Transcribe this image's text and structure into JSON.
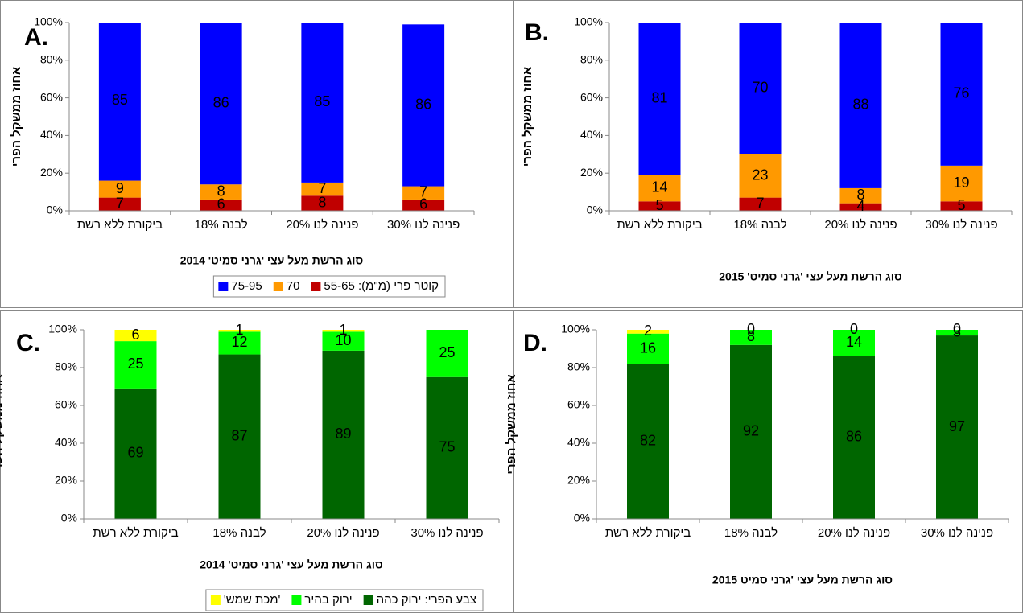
{
  "chart_data": [
    {
      "type": "bar",
      "panel": "A.",
      "ylabel": "אחוז ממשקל הפרי",
      "xlabel": "סוג הרשת מעל עצי 'גרני סמיט' 2014",
      "categories": [
        "ביקורת ללא רשת",
        "לבנה 18%",
        "פנינה לנו 20%",
        "פנינה לנו 30%"
      ],
      "series": [
        {
          "name": "קוטר פרי (מ\"מ): 55-65",
          "color": "#c00000",
          "values": [
            7,
            6,
            8,
            6
          ]
        },
        {
          "name": "70",
          "color": "#ff9900",
          "values": [
            9,
            8,
            7,
            7
          ]
        },
        {
          "name": "75-95",
          "color": "#0000ff",
          "values": [
            85,
            86,
            85,
            86
          ]
        }
      ],
      "ylim": [
        0,
        100
      ],
      "yticks": [
        {
          "value": 0,
          "label": "0%"
        },
        {
          "value": 20,
          "label": "20%"
        },
        {
          "value": 40,
          "label": "40%"
        },
        {
          "value": 60,
          "label": "60%"
        },
        {
          "value": 80,
          "label": "80%"
        },
        {
          "value": 100,
          "label": "100%"
        }
      ],
      "legend": "bottom"
    },
    {
      "type": "bar",
      "panel": "B.",
      "ylabel": "אחוז ממשקל הפרי",
      "xlabel": "סוג הרשת מעל עצי 'גרני סמיט' 2015",
      "categories": [
        "ביקורת ללא רשת",
        "לבנה 18%",
        "פנינה לנו 20%",
        "פנינה לנו 30%"
      ],
      "series": [
        {
          "color": "#c00000",
          "values": [
            5,
            7,
            4,
            5
          ]
        },
        {
          "color": "#ff9900",
          "values": [
            14,
            23,
            8,
            19
          ]
        },
        {
          "color": "#0000ff",
          "values": [
            81,
            70,
            88,
            76
          ]
        }
      ],
      "ylim": [
        0,
        100
      ],
      "yticks": [
        {
          "value": 0,
          "label": "0%"
        },
        {
          "value": 20,
          "label": "20%"
        },
        {
          "value": 40,
          "label": "40%"
        },
        {
          "value": 60,
          "label": "60%"
        },
        {
          "value": 80,
          "label": "80%"
        },
        {
          "value": 100,
          "label": "100%"
        }
      ]
    },
    {
      "type": "bar",
      "panel": "C.",
      "ylabel": "אחוז ממשקל הפרי",
      "xlabel": "סוג הרשת מעל עצי 'גרני סמיט'  2014",
      "categories": [
        "ביקורת ללא רשת",
        "לבנה 18%",
        "פנינה לנו 20%",
        "פנינה לנו 30%"
      ],
      "series": [
        {
          "name": "צבע הפרי: ירוק כהה",
          "color": "#006600",
          "values": [
            69,
            87,
            89,
            75
          ]
        },
        {
          "name": "ירוק בהיר",
          "color": "#00ff00",
          "values": [
            25,
            12,
            10,
            25
          ]
        },
        {
          "name": "'מכת שמש'",
          "color": "#ffff00",
          "values": [
            6,
            1,
            1,
            null
          ]
        }
      ],
      "ylim": [
        0,
        100
      ],
      "yticks": [
        {
          "value": 0,
          "label": "0%"
        },
        {
          "value": 20,
          "label": "20%"
        },
        {
          "value": 40,
          "label": "40%"
        },
        {
          "value": 60,
          "label": "60%"
        },
        {
          "value": 80,
          "label": "80%"
        },
        {
          "value": 100,
          "label": "100%"
        }
      ],
      "legend": "bottom"
    },
    {
      "type": "bar",
      "panel": "D.",
      "ylabel": "אחוז ממשקל הפרי",
      "xlabel": "סוג הרשת מעל עצי 'גרני סמיט 2015",
      "categories": [
        "ביקורת ללא רשת",
        "לבנה 18%",
        "פנינה לנו 20%",
        "פנינה לנו 30%"
      ],
      "series": [
        {
          "color": "#006600",
          "values": [
            82,
            92,
            86,
            97
          ]
        },
        {
          "color": "#00ff00",
          "values": [
            16,
            8,
            14,
            3
          ]
        },
        {
          "color": "#ffff00",
          "values": [
            2,
            0,
            0,
            0
          ]
        }
      ],
      "ylim": [
        0,
        100
      ],
      "yticks": [
        {
          "value": 0,
          "label": "0%"
        },
        {
          "value": 20,
          "label": "20%"
        },
        {
          "value": 40,
          "label": "40%"
        },
        {
          "value": 60,
          "label": "60%"
        },
        {
          "value": 80,
          "label": "80%"
        },
        {
          "value": 100,
          "label": "100%"
        }
      ]
    }
  ]
}
